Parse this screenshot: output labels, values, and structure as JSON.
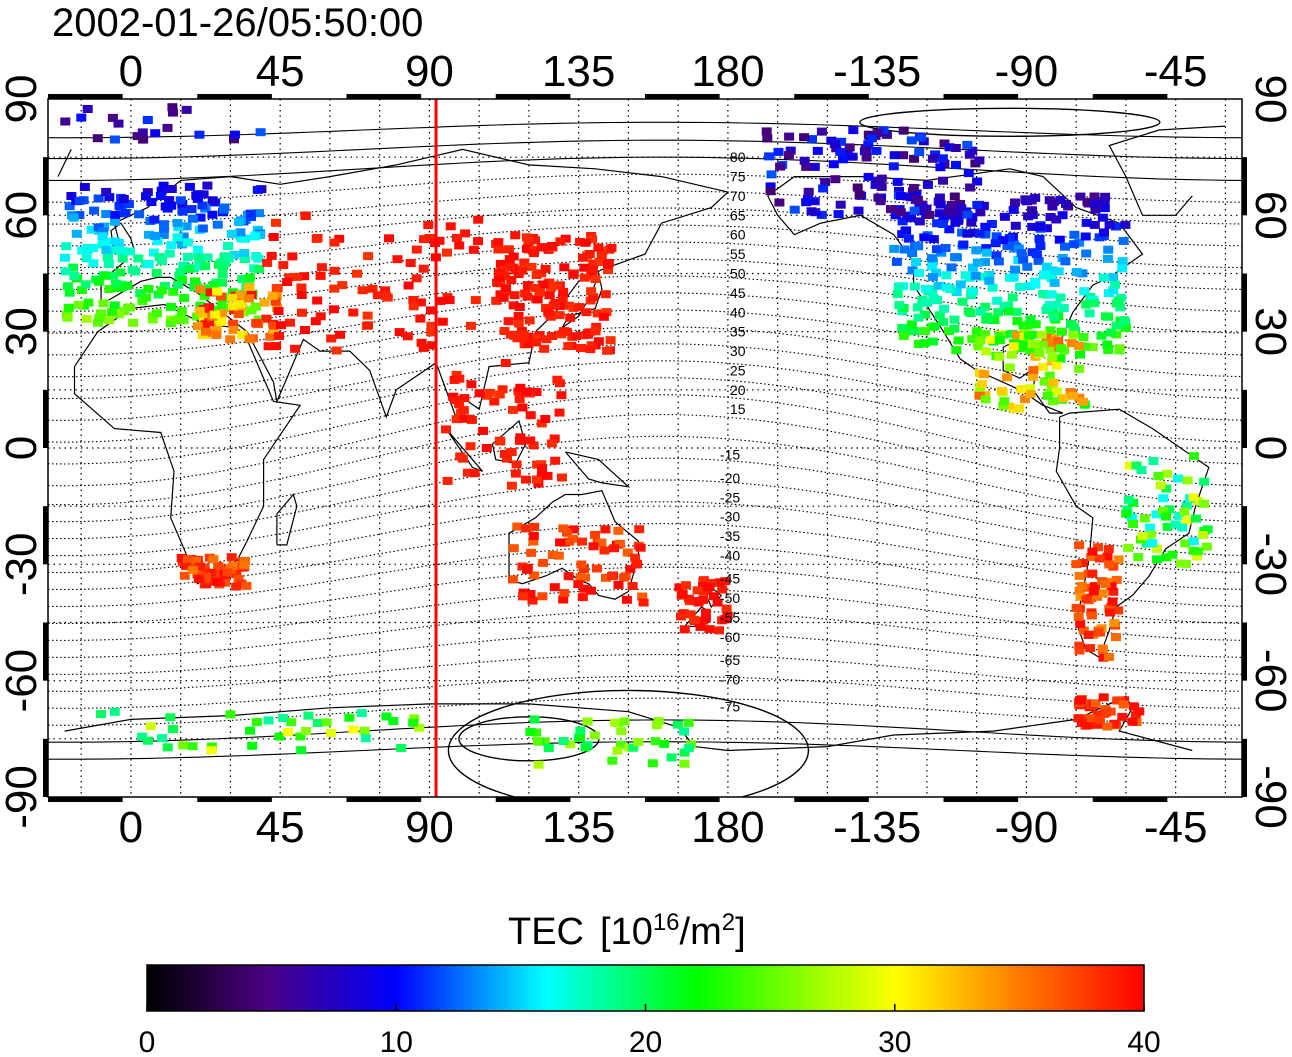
{
  "timestamp": "2002-01-26/05:50:00",
  "top_lon_ticks": [
    "0",
    "45",
    "90",
    "135",
    "180",
    "-135",
    "-90",
    "-45"
  ],
  "bottom_lon_ticks": [
    "0",
    "45",
    "90",
    "135",
    "180",
    "-135",
    "-90",
    "-45"
  ],
  "lat_ticks": [
    "90",
    "60",
    "30",
    "0",
    "-30",
    "-60",
    "-90"
  ],
  "contour_labels_north": [
    "80",
    "75",
    "70",
    "65",
    "60",
    "55",
    "50",
    "45",
    "40",
    "35",
    "30",
    "25",
    "20",
    "15"
  ],
  "contour_labels_south": [
    "-15",
    "-20",
    "-25",
    "-30",
    "-35",
    "-40",
    "-45",
    "-50",
    "-55",
    "-60",
    "-65",
    "-70",
    "-75"
  ],
  "colorbar": {
    "title": "TEC",
    "units_prefix": "[10",
    "units_exp1": "16",
    "units_mid": "/m",
    "units_exp2": "2",
    "units_suffix": "]",
    "tick_labels": [
      "0",
      "10",
      "20",
      "30",
      "40"
    ],
    "min": 0,
    "max": 40,
    "colors": [
      "#000000",
      "#4b0082",
      "#0000ff",
      "#00ffff",
      "#00ff00",
      "#ffff00",
      "#ff0000"
    ]
  },
  "map": {
    "lon_range": [
      -25,
      335
    ],
    "lat_range": [
      -90,
      90
    ],
    "grid": "dotted",
    "meridian_marker_lon": 92,
    "meridian_marker_color": "#ff0000"
  }
}
